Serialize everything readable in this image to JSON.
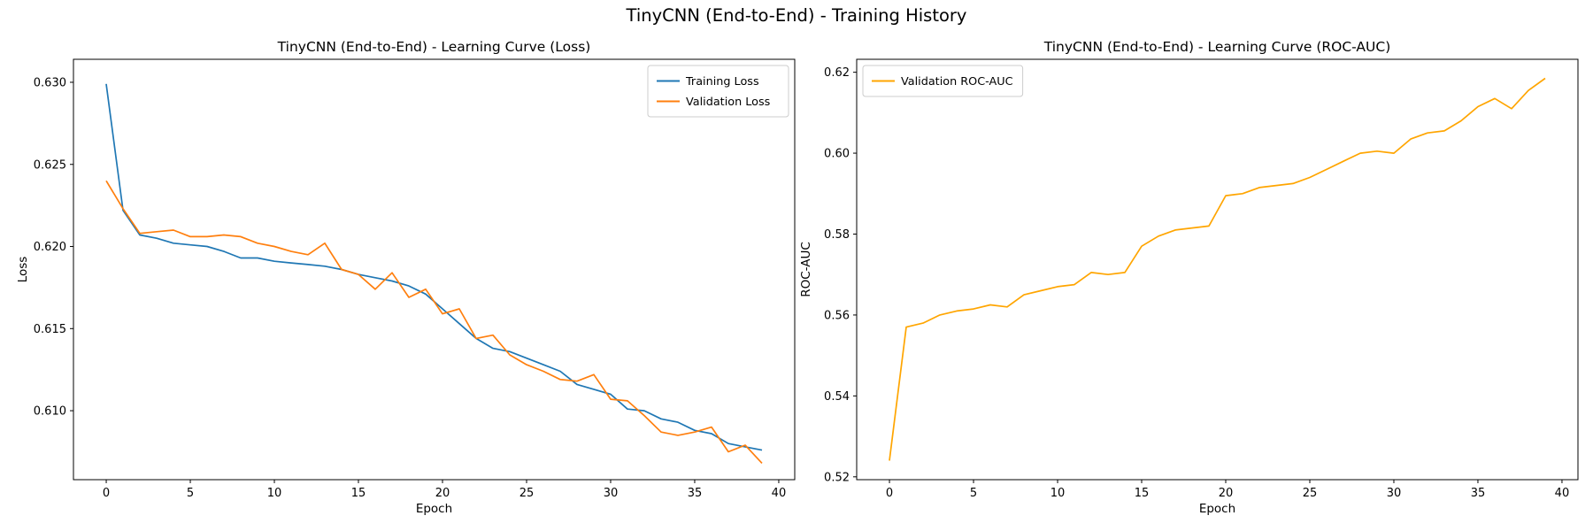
{
  "figure": {
    "title": "TinyCNN (End-to-End) - Training History",
    "background": "#ffffff"
  },
  "chart_data": [
    {
      "id": "loss-curve",
      "type": "line",
      "title": "TinyCNN (End-to-End) - Learning Curve (Loss)",
      "xlabel": "Epoch",
      "ylabel": "Loss",
      "grid": false,
      "legend_position": "upper-right",
      "xlim": [
        -1.95,
        40.95
      ],
      "ylim": [
        0.6058,
        0.6314
      ],
      "xticks": [
        0,
        5,
        10,
        15,
        20,
        25,
        30,
        35,
        40
      ],
      "xtick_labels": [
        "0",
        "5",
        "10",
        "15",
        "20",
        "25",
        "30",
        "35",
        "40"
      ],
      "yticks": [
        0.61,
        0.615,
        0.62,
        0.625,
        0.63
      ],
      "ytick_labels": [
        "0.610",
        "0.615",
        "0.620",
        "0.625",
        "0.630"
      ],
      "x": [
        0,
        1,
        2,
        3,
        4,
        5,
        6,
        7,
        8,
        9,
        10,
        11,
        12,
        13,
        14,
        15,
        16,
        17,
        18,
        19,
        20,
        21,
        22,
        23,
        24,
        25,
        26,
        27,
        28,
        29,
        30,
        31,
        32,
        33,
        34,
        35,
        36,
        37,
        38,
        39
      ],
      "series": [
        {
          "name": "Training Loss",
          "color": "#1f77b4",
          "values": [
            0.6299,
            0.6222,
            0.6207,
            0.6205,
            0.6202,
            0.6201,
            0.62,
            0.6197,
            0.6193,
            0.6193,
            0.6191,
            0.619,
            0.6189,
            0.6188,
            0.6186,
            0.6183,
            0.6181,
            0.6179,
            0.6176,
            0.6171,
            0.6162,
            0.6153,
            0.6144,
            0.6138,
            0.6136,
            0.6132,
            0.6128,
            0.6124,
            0.6116,
            0.6113,
            0.611,
            0.6101,
            0.61,
            0.6095,
            0.6093,
            0.6088,
            0.6086,
            0.608,
            0.6078,
            0.6076
          ]
        },
        {
          "name": "Validation Loss",
          "color": "#ff7f0e",
          "values": [
            0.624,
            0.6223,
            0.6208,
            0.6209,
            0.621,
            0.6206,
            0.6206,
            0.6207,
            0.6206,
            0.6202,
            0.62,
            0.6197,
            0.6195,
            0.6202,
            0.6186,
            0.6183,
            0.6174,
            0.6184,
            0.6169,
            0.6174,
            0.6159,
            0.6162,
            0.6144,
            0.6146,
            0.6134,
            0.6128,
            0.6124,
            0.6119,
            0.6118,
            0.6122,
            0.6107,
            0.6106,
            0.6097,
            0.6087,
            0.6085,
            0.6087,
            0.609,
            0.6075,
            0.6079,
            0.6068
          ]
        }
      ]
    },
    {
      "id": "roc-auc-curve",
      "type": "line",
      "title": "TinyCNN (End-to-End) - Learning Curve (ROC-AUC)",
      "xlabel": "Epoch",
      "ylabel": "ROC-AUC",
      "grid": false,
      "legend_position": "upper-left",
      "xlim": [
        -1.95,
        40.95
      ],
      "ylim": [
        0.5193,
        0.6232
      ],
      "xticks": [
        0,
        5,
        10,
        15,
        20,
        25,
        30,
        35,
        40
      ],
      "xtick_labels": [
        "0",
        "5",
        "10",
        "15",
        "20",
        "25",
        "30",
        "35",
        "40"
      ],
      "yticks": [
        0.52,
        0.54,
        0.56,
        0.58,
        0.6,
        0.62
      ],
      "ytick_labels": [
        "0.52",
        "0.54",
        "0.56",
        "0.58",
        "0.60",
        "0.62"
      ],
      "x": [
        0,
        1,
        2,
        3,
        4,
        5,
        6,
        7,
        8,
        9,
        10,
        11,
        12,
        13,
        14,
        15,
        16,
        17,
        18,
        19,
        20,
        21,
        22,
        23,
        24,
        25,
        26,
        27,
        28,
        29,
        30,
        31,
        32,
        33,
        34,
        35,
        36,
        37,
        38,
        39
      ],
      "series": [
        {
          "name": "Validation ROC-AUC",
          "color": "#ffa500",
          "values": [
            0.524,
            0.557,
            0.558,
            0.56,
            0.561,
            0.5615,
            0.5625,
            0.562,
            0.565,
            0.566,
            0.567,
            0.5675,
            0.5705,
            0.57,
            0.5705,
            0.577,
            0.5795,
            0.581,
            0.5815,
            0.582,
            0.5895,
            0.59,
            0.5915,
            0.592,
            0.5925,
            0.594,
            0.596,
            0.598,
            0.6,
            0.6005,
            0.6,
            0.6035,
            0.605,
            0.6055,
            0.608,
            0.6115,
            0.6135,
            0.611,
            0.6155,
            0.6185
          ]
        }
      ]
    }
  ]
}
